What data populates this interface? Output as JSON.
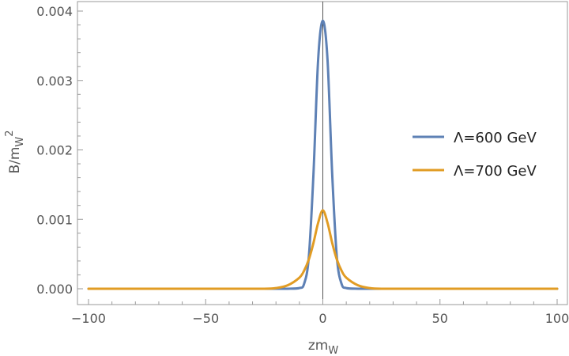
{
  "chart_data": {
    "type": "line",
    "title": "",
    "xlabel": {
      "base": "zm",
      "sub": "W"
    },
    "ylabel": {
      "base": "B/m",
      "sub": "W",
      "sup": "2"
    },
    "xlim": [
      -100,
      100
    ],
    "ylim": [
      0,
      0.004
    ],
    "xticks": [
      -100,
      -50,
      0,
      50,
      100
    ],
    "xtick_labels": [
      "−100",
      "−50",
      "0",
      "50",
      "100"
    ],
    "yticks": [
      0,
      0.001,
      0.002,
      0.003,
      0.004
    ],
    "ytick_labels": [
      "0.000",
      "0.001",
      "0.002",
      "0.003",
      "0.004"
    ],
    "legend_position": "right",
    "series": [
      {
        "name": "Λ=600 GeV",
        "color": "#5e81b5",
        "x": [
          -100,
          -40,
          -20,
          -15,
          -10,
          -8,
          -6,
          -4,
          -2,
          0,
          2,
          4,
          6,
          8,
          10,
          15,
          20,
          40,
          100
        ],
        "y": [
          0,
          0,
          0,
          0,
          1e-05,
          7e-05,
          0.00045,
          0.00165,
          0.0033,
          0.00386,
          0.0033,
          0.00165,
          0.00045,
          7e-05,
          1e-05,
          0,
          0,
          0,
          0
        ]
      },
      {
        "name": "Λ=700 GeV",
        "color": "#e19c24",
        "x": [
          -100,
          -40,
          -25,
          -20,
          -15,
          -10,
          -8,
          -6,
          -4,
          -2,
          0,
          2,
          4,
          6,
          8,
          10,
          15,
          20,
          25,
          40,
          100
        ],
        "y": [
          0,
          0,
          0,
          1e-05,
          5e-05,
          0.00016,
          0.00026,
          0.00042,
          0.00066,
          0.00095,
          0.00113,
          0.00095,
          0.00066,
          0.00042,
          0.00026,
          0.00016,
          5e-05,
          1e-05,
          0,
          0,
          0
        ]
      }
    ]
  }
}
